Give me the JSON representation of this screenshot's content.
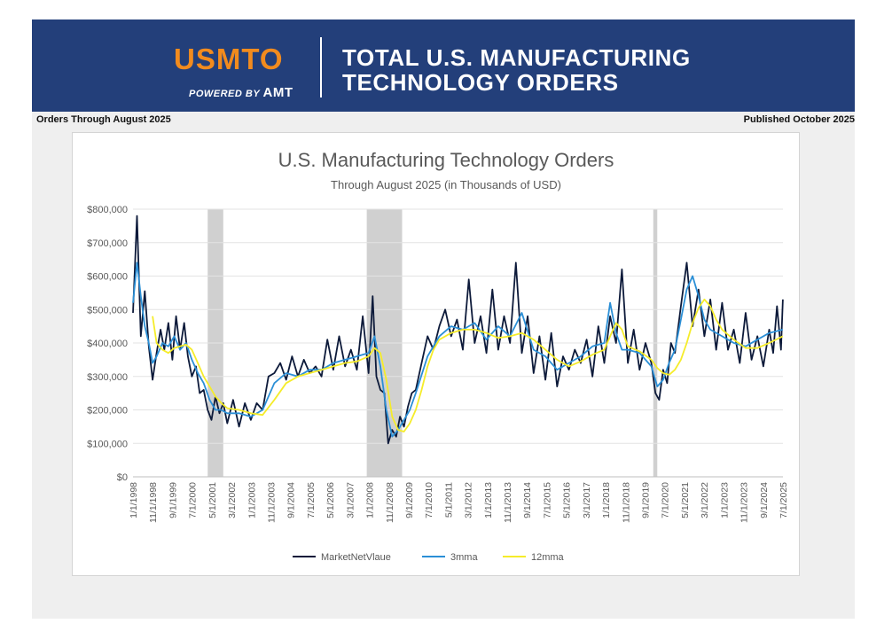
{
  "header": {
    "logo_text": "USMTO",
    "powered_by": "POWERED BY",
    "powered_brand": "AMT",
    "title_line1": "TOTAL U.S. MANUFACTURING",
    "title_line2": "TECHNOLOGY ORDERS",
    "color_bg": "#233f7a",
    "color_logo": "#f28b1e"
  },
  "meta": {
    "left": "Orders Through August 2025",
    "right": "Published October 2025"
  },
  "chart_data": {
    "type": "line",
    "title": "U.S. Manufacturing Technology Orders",
    "subtitle": "Through August 2025 (in Thousands of USD)",
    "xlabel": "",
    "ylabel": "",
    "ylim": [
      0,
      800000
    ],
    "y_ticks": [
      "$0",
      "$100,000",
      "$200,000",
      "$300,000",
      "$400,000",
      "$500,000",
      "$600,000",
      "$700,000",
      "$800,000"
    ],
    "x_ticks": [
      "1/1/1998",
      "11/1/1998",
      "9/1/1999",
      "7/1/2000",
      "5/1/2001",
      "3/1/2002",
      "1/1/2003",
      "11/1/2003",
      "9/1/2004",
      "7/1/2005",
      "5/1/2006",
      "3/1/2007",
      "1/1/2008",
      "11/1/2008",
      "9/1/2009",
      "7/1/2010",
      "5/1/2011",
      "3/1/2012",
      "1/1/2013",
      "11/1/2013",
      "9/1/2014",
      "7/1/2015",
      "5/1/2016",
      "3/1/2017",
      "1/1/2018",
      "11/1/2018",
      "9/1/2019",
      "7/1/2020",
      "5/1/2021",
      "3/1/2022",
      "1/1/2023",
      "11/1/2023",
      "9/1/2024",
      "7/1/2025"
    ],
    "x_range": [
      1998.0,
      2025.583
    ],
    "recessions": [
      [
        2001.17,
        2001.83
      ],
      [
        2007.92,
        2009.42
      ],
      [
        2020.08,
        2020.25
      ]
    ],
    "grid": true,
    "legend_position": "bottom",
    "series": [
      {
        "name": "MarketNetVlaue",
        "color": "#0d1a3a",
        "x": [
          1998.0,
          1998.17,
          1998.33,
          1998.5,
          1998.67,
          1998.83,
          1999.0,
          1999.17,
          1999.33,
          1999.5,
          1999.67,
          1999.83,
          2000.0,
          2000.17,
          2000.33,
          2000.5,
          2000.67,
          2000.83,
          2001.0,
          2001.17,
          2001.33,
          2001.5,
          2001.67,
          2001.83,
          2002.0,
          2002.25,
          2002.5,
          2002.75,
          2003.0,
          2003.25,
          2003.5,
          2003.75,
          2004.0,
          2004.25,
          2004.5,
          2004.75,
          2005.0,
          2005.25,
          2005.5,
          2005.75,
          2006.0,
          2006.25,
          2006.5,
          2006.75,
          2007.0,
          2007.25,
          2007.5,
          2007.75,
          2008.0,
          2008.17,
          2008.33,
          2008.5,
          2008.67,
          2008.83,
          2009.0,
          2009.17,
          2009.33,
          2009.5,
          2009.67,
          2009.83,
          2010.0,
          2010.25,
          2010.5,
          2010.75,
          2011.0,
          2011.25,
          2011.5,
          2011.75,
          2012.0,
          2012.25,
          2012.5,
          2012.75,
          2013.0,
          2013.25,
          2013.5,
          2013.75,
          2014.0,
          2014.25,
          2014.5,
          2014.75,
          2015.0,
          2015.25,
          2015.5,
          2015.75,
          2016.0,
          2016.25,
          2016.5,
          2016.75,
          2017.0,
          2017.25,
          2017.5,
          2017.75,
          2018.0,
          2018.25,
          2018.5,
          2018.75,
          2019.0,
          2019.25,
          2019.5,
          2019.75,
          2020.0,
          2020.17,
          2020.33,
          2020.5,
          2020.67,
          2020.83,
          2021.0,
          2021.25,
          2021.5,
          2021.75,
          2022.0,
          2022.25,
          2022.5,
          2022.75,
          2023.0,
          2023.25,
          2023.5,
          2023.75,
          2024.0,
          2024.25,
          2024.5,
          2024.75,
          2025.0,
          2025.17,
          2025.33,
          2025.5,
          2025.58
        ],
        "values": [
          490000,
          780000,
          420000,
          555000,
          390000,
          290000,
          370000,
          440000,
          380000,
          460000,
          350000,
          480000,
          380000,
          460000,
          360000,
          300000,
          330000,
          250000,
          260000,
          200000,
          170000,
          240000,
          190000,
          220000,
          160000,
          230000,
          150000,
          220000,
          170000,
          220000,
          200000,
          300000,
          310000,
          340000,
          290000,
          360000,
          300000,
          350000,
          310000,
          330000,
          300000,
          410000,
          320000,
          420000,
          330000,
          380000,
          320000,
          480000,
          310000,
          540000,
          300000,
          260000,
          250000,
          100000,
          140000,
          120000,
          180000,
          150000,
          210000,
          250000,
          260000,
          340000,
          420000,
          380000,
          450000,
          500000,
          420000,
          470000,
          380000,
          590000,
          400000,
          480000,
          370000,
          560000,
          380000,
          480000,
          400000,
          640000,
          370000,
          480000,
          310000,
          420000,
          290000,
          430000,
          270000,
          360000,
          320000,
          380000,
          340000,
          410000,
          300000,
          450000,
          340000,
          480000,
          400000,
          620000,
          340000,
          440000,
          320000,
          400000,
          340000,
          250000,
          230000,
          320000,
          280000,
          400000,
          370000,
          510000,
          640000,
          450000,
          560000,
          420000,
          530000,
          380000,
          520000,
          380000,
          440000,
          340000,
          490000,
          350000,
          420000,
          330000,
          440000,
          370000,
          510000,
          380000,
          530000
        ]
      },
      {
        "name": "3mma",
        "color": "#2b8fd6",
        "x": [
          1998.0,
          1998.17,
          1998.33,
          1998.5,
          1998.67,
          1998.83,
          1999.0,
          1999.25,
          1999.5,
          1999.75,
          2000.0,
          2000.25,
          2000.5,
          2000.75,
          2001.0,
          2001.25,
          2001.5,
          2001.75,
          2002.0,
          2002.5,
          2003.0,
          2003.5,
          2004.0,
          2004.5,
          2005.0,
          2005.5,
          2006.0,
          2006.5,
          2007.0,
          2007.5,
          2008.0,
          2008.25,
          2008.5,
          2008.75,
          2009.0,
          2009.25,
          2009.5,
          2009.75,
          2010.0,
          2010.5,
          2011.0,
          2011.5,
          2012.0,
          2012.5,
          2013.0,
          2013.5,
          2014.0,
          2014.5,
          2015.0,
          2015.5,
          2016.0,
          2016.5,
          2017.0,
          2017.5,
          2018.0,
          2018.25,
          2018.5,
          2018.75,
          2019.0,
          2019.5,
          2020.0,
          2020.25,
          2020.5,
          2020.75,
          2021.0,
          2021.25,
          2021.5,
          2021.75,
          2022.0,
          2022.25,
          2022.5,
          2023.0,
          2023.5,
          2024.0,
          2024.5,
          2025.0,
          2025.58
        ],
        "values": [
          520000,
          640000,
          540000,
          450000,
          400000,
          340000,
          360000,
          400000,
          390000,
          420000,
          380000,
          400000,
          350000,
          310000,
          280000,
          230000,
          200000,
          200000,
          190000,
          190000,
          180000,
          200000,
          280000,
          310000,
          300000,
          320000,
          320000,
          340000,
          350000,
          360000,
          370000,
          420000,
          330000,
          200000,
          120000,
          140000,
          170000,
          200000,
          250000,
          360000,
          420000,
          450000,
          440000,
          460000,
          410000,
          450000,
          420000,
          490000,
          380000,
          360000,
          320000,
          340000,
          360000,
          390000,
          400000,
          520000,
          430000,
          380000,
          380000,
          370000,
          330000,
          270000,
          290000,
          340000,
          380000,
          470000,
          560000,
          600000,
          540000,
          470000,
          440000,
          420000,
          400000,
          390000,
          410000,
          430000,
          440000
        ]
      },
      {
        "name": "12mma",
        "color": "#f5ec2a",
        "x": [
          1998.83,
          1999.0,
          1999.25,
          1999.5,
          1999.75,
          2000.0,
          2000.25,
          2000.5,
          2000.75,
          2001.0,
          2001.25,
          2001.5,
          2001.75,
          2002.0,
          2002.5,
          2003.0,
          2003.5,
          2004.0,
          2004.5,
          2005.0,
          2005.5,
          2006.0,
          2006.5,
          2007.0,
          2007.5,
          2008.0,
          2008.25,
          2008.5,
          2008.75,
          2009.0,
          2009.25,
          2009.5,
          2009.75,
          2010.0,
          2010.25,
          2010.5,
          2010.75,
          2011.0,
          2011.5,
          2012.0,
          2012.5,
          2013.0,
          2013.5,
          2014.0,
          2014.5,
          2015.0,
          2015.5,
          2016.0,
          2016.5,
          2017.0,
          2017.5,
          2018.0,
          2018.25,
          2018.5,
          2018.75,
          2019.0,
          2019.5,
          2020.0,
          2020.25,
          2020.5,
          2020.75,
          2021.0,
          2021.25,
          2021.5,
          2021.75,
          2022.0,
          2022.25,
          2022.5,
          2022.75,
          2023.0,
          2023.5,
          2024.0,
          2024.5,
          2025.0,
          2025.58
        ],
        "values": [
          480000,
          400000,
          380000,
          370000,
          385000,
          390000,
          395000,
          380000,
          340000,
          300000,
          270000,
          240000,
          220000,
          205000,
          200000,
          190000,
          185000,
          230000,
          280000,
          300000,
          310000,
          320000,
          330000,
          340000,
          345000,
          360000,
          385000,
          370000,
          290000,
          180000,
          140000,
          135000,
          160000,
          200000,
          260000,
          330000,
          380000,
          410000,
          430000,
          440000,
          440000,
          430000,
          415000,
          420000,
          430000,
          410000,
          380000,
          350000,
          330000,
          345000,
          365000,
          380000,
          420000,
          460000,
          440000,
          390000,
          375000,
          350000,
          325000,
          310000,
          305000,
          320000,
          350000,
          400000,
          460000,
          505000,
          530000,
          510000,
          470000,
          440000,
          410000,
          385000,
          385000,
          400000,
          420000
        ]
      }
    ]
  }
}
